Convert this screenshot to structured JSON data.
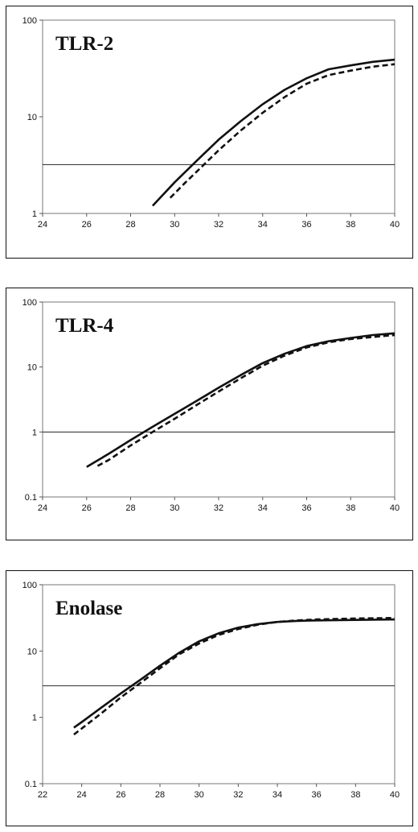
{
  "chart_data": [
    {
      "type": "line",
      "title": "TLR-2",
      "xlabel": "",
      "ylabel": "",
      "x_scale": "linear",
      "y_scale": "log",
      "xlim": [
        24,
        40
      ],
      "ylim": [
        1,
        100
      ],
      "x_ticks": [
        "24",
        "26",
        "28",
        "30",
        "32",
        "34",
        "36",
        "38",
        "40"
      ],
      "y_ticks": [
        "1",
        "10",
        "100"
      ],
      "threshold": 3.2,
      "grid": false,
      "series": [
        {
          "style": "solid",
          "color": "#111111",
          "x": [
            29,
            30,
            31,
            32,
            33,
            34,
            35,
            36,
            37,
            38,
            39,
            40
          ],
          "y": [
            1.2,
            2.1,
            3.5,
            5.8,
            9.0,
            13.5,
            19,
            25,
            31,
            34,
            37,
            39
          ]
        },
        {
          "style": "dashed",
          "color": "#111111",
          "x": [
            29.8,
            30.5,
            31,
            32,
            33,
            34,
            35,
            36,
            37,
            38,
            39,
            40
          ],
          "y": [
            1.45,
            2.1,
            2.7,
            4.5,
            7.2,
            11,
            16,
            22,
            27,
            30,
            33,
            35
          ]
        }
      ]
    },
    {
      "type": "line",
      "title": "TLR-4",
      "xlabel": "",
      "ylabel": "",
      "x_scale": "linear",
      "y_scale": "log",
      "xlim": [
        24,
        40
      ],
      "ylim": [
        0.1,
        100
      ],
      "x_ticks": [
        "24",
        "26",
        "28",
        "30",
        "32",
        "34",
        "36",
        "38",
        "40"
      ],
      "y_ticks": [
        "0.1",
        "1",
        "10",
        "100"
      ],
      "threshold": 1.0,
      "grid": false,
      "series": [
        {
          "style": "solid",
          "color": "#111111",
          "x": [
            26,
            27,
            28,
            29,
            30,
            31,
            32,
            33,
            34,
            35,
            36,
            37,
            38,
            39,
            40
          ],
          "y": [
            0.29,
            0.46,
            0.75,
            1.2,
            1.9,
            3.0,
            4.8,
            7.5,
            11.5,
            16,
            21,
            25,
            28,
            31,
            33
          ]
        },
        {
          "style": "dashed",
          "color": "#111111",
          "x": [
            26.5,
            27,
            28,
            29,
            30,
            31,
            32,
            33,
            34,
            35,
            36,
            37,
            38,
            39,
            40
          ],
          "y": [
            0.3,
            0.37,
            0.62,
            1.0,
            1.6,
            2.6,
            4.2,
            6.7,
            10.5,
            15,
            20,
            24,
            27,
            29,
            31
          ]
        }
      ]
    },
    {
      "type": "line",
      "title": "Enolase",
      "xlabel": "",
      "ylabel": "",
      "x_scale": "linear",
      "y_scale": "log",
      "xlim": [
        22,
        40
      ],
      "ylim": [
        0.1,
        100
      ],
      "x_ticks": [
        "22",
        "24",
        "26",
        "28",
        "30",
        "32",
        "34",
        "36",
        "38",
        "40"
      ],
      "y_ticks": [
        "0.1",
        "1",
        "10",
        "100"
      ],
      "threshold": 3.0,
      "grid": false,
      "series": [
        {
          "style": "solid",
          "color": "#111111",
          "x": [
            23.6,
            24,
            25,
            26,
            27,
            28,
            29,
            30,
            31,
            32,
            33,
            34,
            35,
            36,
            38,
            40
          ],
          "y": [
            0.7,
            0.85,
            1.4,
            2.3,
            3.7,
            6,
            9.5,
            14,
            18.5,
            22.5,
            25.5,
            27.5,
            28.5,
            29,
            29.5,
            30
          ]
        },
        {
          "style": "dashed",
          "color": "#111111",
          "x": [
            23.6,
            24,
            25,
            26,
            27,
            28,
            29,
            30,
            31,
            32,
            33,
            34,
            35,
            36,
            38,
            40
          ],
          "y": [
            0.55,
            0.68,
            1.15,
            2.0,
            3.3,
            5.5,
            9,
            13,
            17.5,
            21.5,
            25,
            27.5,
            29,
            30,
            31,
            31.5
          ]
        }
      ]
    }
  ]
}
